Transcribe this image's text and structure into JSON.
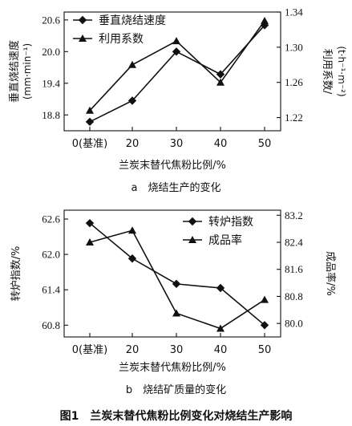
{
  "figure_caption": "图1　兰炭末替代焦粉比例变化对烧结生产影响",
  "chart_data": [
    {
      "type": "line",
      "caption": "a　烧结生产的变化",
      "categories": [
        "0(基准)",
        "20",
        "30",
        "40",
        "50"
      ],
      "xlabel": "兰炭末替代焦粉比例/%",
      "ylabel_left": "垂直烧结速度",
      "ylabel_left_unit": "(mm·min⁻¹)",
      "ylabel_right": "利用系数/",
      "ylabel_right_unit": "(t·h⁻¹·m⁻²)",
      "yleft_ticks": [
        "18.8",
        "19.4",
        "20.0",
        "20.6"
      ],
      "yright_ticks": [
        "1.22",
        "1.26",
        "1.30",
        "1.34"
      ],
      "ylim_left": [
        18.5,
        20.75
      ],
      "ylim_right": [
        1.205,
        1.34
      ],
      "legend_position": "top-left",
      "series": [
        {
          "name": "垂直烧结速度",
          "axis": "left",
          "marker": "diamond",
          "values": [
            18.67,
            19.07,
            20.0,
            19.57,
            20.5
          ]
        },
        {
          "name": "利用系数",
          "axis": "right",
          "marker": "triangle",
          "values": [
            1.228,
            1.28,
            1.307,
            1.26,
            1.33
          ]
        }
      ]
    },
    {
      "type": "line",
      "caption": "b　烧结矿质量的变化",
      "categories": [
        "0(基准)",
        "20",
        "30",
        "40",
        "50"
      ],
      "xlabel": "兰炭末替代焦粉比例/%",
      "ylabel_left": "转炉指数/%",
      "ylabel_right": "成品率/%",
      "yleft_ticks": [
        "60.8",
        "61.4",
        "62.0",
        "62.6"
      ],
      "yright_ticks": [
        "80.0",
        "80.8",
        "81.6",
        "82.4",
        "83.2"
      ],
      "ylim_left": [
        60.6,
        62.75
      ],
      "ylim_right": [
        79.6,
        83.35
      ],
      "legend_position": "top-right",
      "series": [
        {
          "name": "转炉指数",
          "axis": "left",
          "marker": "diamond",
          "values": [
            62.53,
            61.93,
            61.5,
            61.43,
            60.8
          ]
        },
        {
          "name": "成品率",
          "axis": "right",
          "marker": "triangle",
          "values": [
            82.4,
            82.75,
            80.3,
            79.85,
            80.7
          ]
        }
      ]
    }
  ]
}
